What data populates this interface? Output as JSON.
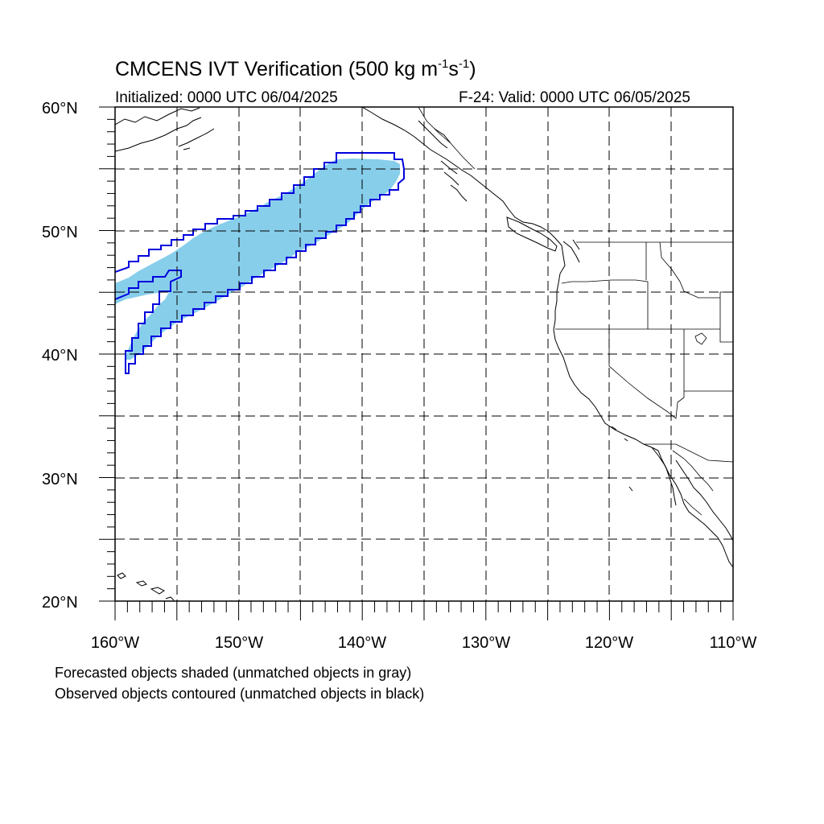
{
  "title": {
    "prefix": "CMCENS IVT Verification (500 kg m",
    "exp1": "-1",
    "mid": "s",
    "exp2": "-1",
    "suffix": ")"
  },
  "subtitle": {
    "initialized": "Initialized: 0000 UTC 06/04/2025",
    "valid": "F-24: Valid: 0000 UTC 06/05/2025"
  },
  "map": {
    "projection": "cylindrical-equidistant",
    "lon_range": [
      -160,
      -110
    ],
    "lat_range": [
      20,
      60
    ],
    "lat_labels": [
      "60°N",
      "50°N",
      "40°N",
      "30°N",
      "20°N"
    ],
    "lon_labels": [
      "160°W",
      "150°W",
      "140°W",
      "130°W",
      "120°W",
      "110°W"
    ],
    "grid": "dashed every 5°",
    "colors": {
      "forecast_fill": "#87ceeb",
      "observed_contour": "#0000dd",
      "coastline": "#000000"
    }
  },
  "legend": {
    "line1": "Forecasted objects shaded (unmatched objects in gray)",
    "line2": "Observed objects contoured (unmatched objects in black)"
  }
}
